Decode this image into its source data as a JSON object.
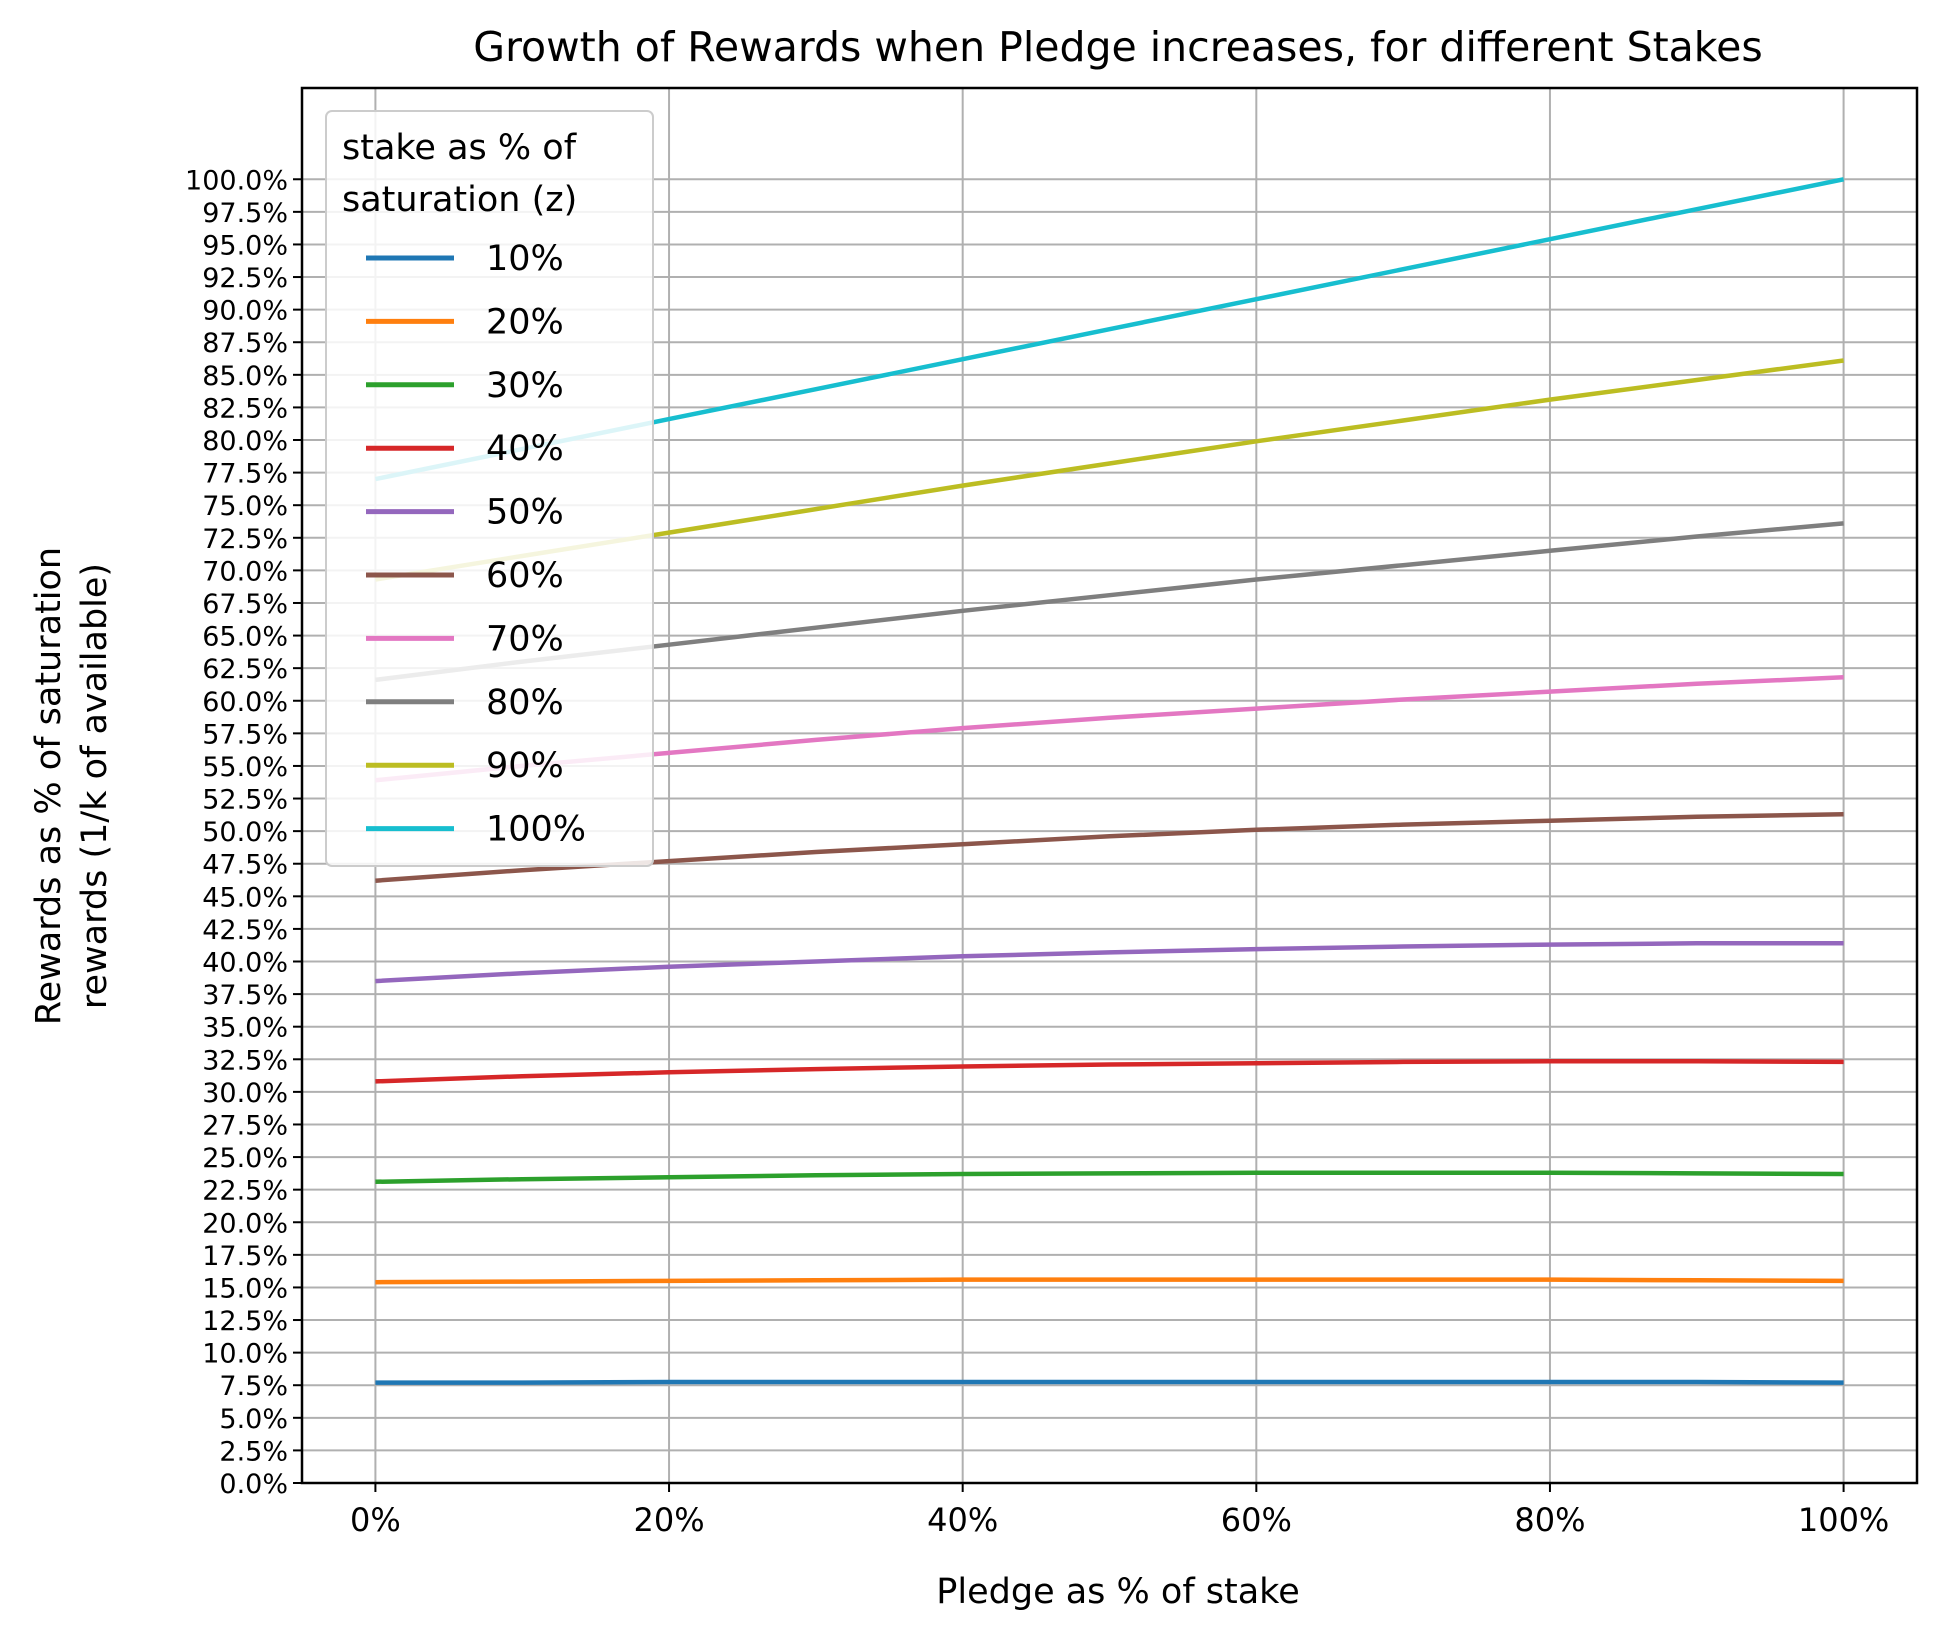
{
  "chart_data": {
    "type": "line",
    "title": "Growth of Rewards when Pledge increases, for different Stakes",
    "xlabel": "Pledge as % of stake",
    "ylabel": "Rewards as % of saturation\nrewards (1/k of available)",
    "x": [
      0,
      10,
      20,
      30,
      40,
      50,
      60,
      70,
      80,
      90,
      100
    ],
    "x_ticks": [
      "0%",
      "20%",
      "40%",
      "60%",
      "80%",
      "100%"
    ],
    "y_ticks": [
      "0.0%",
      "2.5%",
      "5.0%",
      "7.5%",
      "10.0%",
      "12.5%",
      "15.0%",
      "17.5%",
      "20.0%",
      "22.5%",
      "25.0%",
      "27.5%",
      "30.0%",
      "32.5%",
      "35.0%",
      "37.5%",
      "40.0%",
      "42.5%",
      "45.0%",
      "47.5%",
      "50.0%",
      "52.5%",
      "55.0%",
      "57.5%",
      "60.0%",
      "62.5%",
      "65.0%",
      "67.5%",
      "70.0%",
      "72.5%",
      "75.0%",
      "77.5%",
      "80.0%",
      "82.5%",
      "85.0%",
      "87.5%",
      "90.0%",
      "92.5%",
      "95.0%",
      "97.5%",
      "100.0%"
    ],
    "xlim": [
      -5,
      105
    ],
    "ylim": [
      0,
      107
    ],
    "grid": true,
    "legend": {
      "title": "stake as % of\nsaturation (z)",
      "placement": "upper-left"
    },
    "series": [
      {
        "name": "10%",
        "color": "#1f77b4",
        "values": [
          7.7,
          7.7,
          7.75,
          7.75,
          7.75,
          7.75,
          7.75,
          7.75,
          7.75,
          7.75,
          7.7
        ]
      },
      {
        "name": "20%",
        "color": "#ff7f0e",
        "values": [
          15.4,
          15.45,
          15.5,
          15.55,
          15.6,
          15.6,
          15.6,
          15.6,
          15.6,
          15.55,
          15.5
        ]
      },
      {
        "name": "30%",
        "color": "#2ca02c",
        "values": [
          23.1,
          23.3,
          23.45,
          23.6,
          23.7,
          23.75,
          23.8,
          23.8,
          23.8,
          23.75,
          23.7
        ]
      },
      {
        "name": "40%",
        "color": "#d62728",
        "values": [
          30.8,
          31.2,
          31.5,
          31.75,
          31.95,
          32.1,
          32.2,
          32.3,
          32.35,
          32.35,
          32.3
        ]
      },
      {
        "name": "50%",
        "color": "#9467bd",
        "values": [
          38.5,
          39.1,
          39.6,
          40.0,
          40.4,
          40.7,
          40.95,
          41.15,
          41.3,
          41.4,
          41.4
        ]
      },
      {
        "name": "60%",
        "color": "#8c564b",
        "values": [
          46.2,
          47.0,
          47.7,
          48.4,
          49.0,
          49.6,
          50.1,
          50.5,
          50.8,
          51.1,
          51.3
        ]
      },
      {
        "name": "70%",
        "color": "#e377c2",
        "values": [
          53.9,
          55.0,
          56.0,
          57.0,
          57.9,
          58.7,
          59.4,
          60.1,
          60.7,
          61.3,
          61.8
        ]
      },
      {
        "name": "80%",
        "color": "#7f7f7f",
        "values": [
          61.6,
          63.0,
          64.3,
          65.6,
          66.9,
          68.1,
          69.3,
          70.4,
          71.5,
          72.6,
          73.6
        ]
      },
      {
        "name": "90%",
        "color": "#bcbd22",
        "values": [
          69.3,
          71.1,
          72.9,
          74.7,
          76.5,
          78.2,
          79.9,
          81.5,
          83.1,
          84.6,
          86.1
        ]
      },
      {
        "name": "100%",
        "color": "#17becf",
        "values": [
          77.0,
          79.3,
          81.6,
          83.9,
          86.2,
          88.5,
          90.8,
          93.1,
          95.4,
          97.7,
          100.0
        ]
      }
    ]
  }
}
